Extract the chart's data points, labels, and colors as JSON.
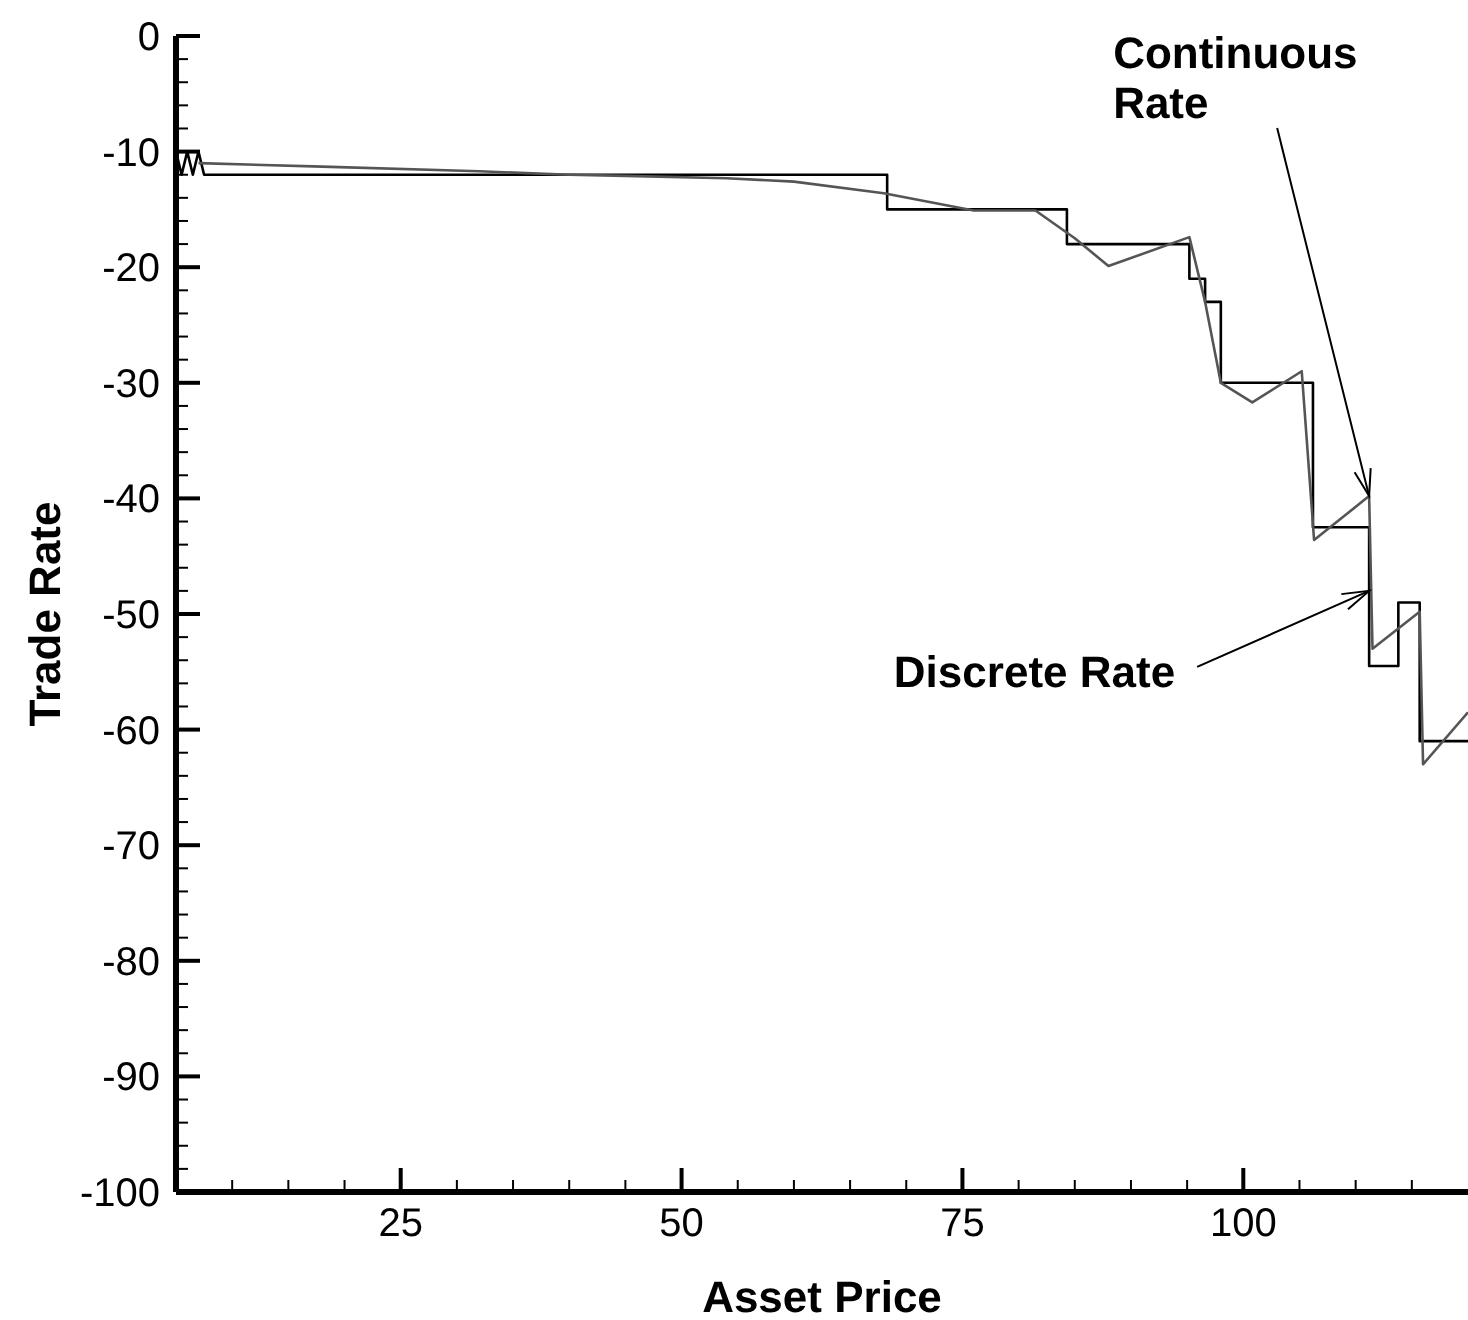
{
  "chart_data": {
    "type": "line",
    "xlabel": "Asset Price",
    "ylabel": "Trade Rate",
    "xlim": [
      5,
      120
    ],
    "xticks": [
      {
        "value": 10,
        "label": null
      },
      {
        "value": 15,
        "label": null
      },
      {
        "value": 20,
        "label": null
      },
      25,
      {
        "value": 30,
        "label": null
      },
      {
        "value": 35,
        "label": null
      },
      {
        "value": 40,
        "label": null
      },
      {
        "value": 45,
        "label": null
      },
      50,
      {
        "value": 55,
        "label": null
      },
      {
        "value": 60,
        "label": null
      },
      {
        "value": 65,
        "label": null
      },
      {
        "value": 70,
        "label": null
      },
      75,
      {
        "value": 80,
        "label": null
      },
      {
        "value": 85,
        "label": null
      },
      {
        "value": 90,
        "label": null
      },
      {
        "value": 95,
        "label": null
      },
      100,
      {
        "value": 105,
        "label": null
      },
      {
        "value": 110,
        "label": null
      },
      {
        "value": 115,
        "label": null
      }
    ],
    "ylim": [
      -100,
      0
    ],
    "yticks": [
      -100,
      {
        "value": -98,
        "label": null
      },
      {
        "value": -96,
        "label": null
      },
      {
        "value": -94,
        "label": null
      },
      {
        "value": -92,
        "label": null
      },
      -90,
      {
        "value": -88,
        "label": null
      },
      {
        "value": -86,
        "label": null
      },
      {
        "value": -84,
        "label": null
      },
      {
        "value": -82,
        "label": null
      },
      -80,
      {
        "value": -78,
        "label": null
      },
      {
        "value": -76,
        "label": null
      },
      {
        "value": -74,
        "label": null
      },
      {
        "value": -72,
        "label": null
      },
      -70,
      {
        "value": -68,
        "label": null
      },
      {
        "value": -66,
        "label": null
      },
      {
        "value": -64,
        "label": null
      },
      {
        "value": -62,
        "label": null
      },
      -60,
      {
        "value": -58,
        "label": null
      },
      {
        "value": -56,
        "label": null
      },
      {
        "value": -54,
        "label": null
      },
      {
        "value": -52,
        "label": null
      },
      -50,
      {
        "value": -48,
        "label": null
      },
      {
        "value": -46,
        "label": null
      },
      {
        "value": -44,
        "label": null
      },
      {
        "value": -42,
        "label": null
      },
      -40,
      {
        "value": -38,
        "label": null
      },
      {
        "value": -36,
        "label": null
      },
      {
        "value": -34,
        "label": null
      },
      {
        "value": -32,
        "label": null
      },
      -30,
      {
        "value": -28,
        "label": null
      },
      {
        "value": -26,
        "label": null
      },
      {
        "value": -24,
        "label": null
      },
      {
        "value": -22,
        "label": null
      },
      -20,
      {
        "value": -18,
        "label": null
      },
      {
        "value": -16,
        "label": null
      },
      {
        "value": -14,
        "label": null
      },
      {
        "value": -12,
        "label": null
      },
      -10,
      {
        "value": -8,
        "label": null
      },
      {
        "value": -6,
        "label": null
      },
      {
        "value": -4,
        "label": null
      },
      {
        "value": -2,
        "label": null
      },
      0
    ],
    "marker": "none",
    "line_style": "solid",
    "series": [
      {
        "color": "#000000",
        "x": [
          5,
          5.5,
          6,
          6.5,
          7,
          7.5,
          68.3,
          68.3,
          84.3,
          84.3,
          95.2,
          95.2,
          96.6,
          96.6,
          98,
          98,
          106.2,
          106.2,
          111.2,
          111.2,
          113.8,
          113.8,
          115.7,
          115.7,
          120
        ],
        "values": [
          -10,
          -12,
          -10,
          -12,
          -10,
          -12,
          -12,
          -15,
          -15,
          -18,
          -18,
          -21,
          -21,
          -23,
          -23,
          -30,
          -30,
          -42.5,
          -42.5,
          -54.5,
          -54.5,
          -49,
          -49,
          -61,
          -61
        ]
      },
      {
        "color": "#555555",
        "x": [
          7,
          18,
          32,
          40,
          45,
          54,
          60,
          68,
          76,
          81.5,
          85,
          88,
          95.2,
          96.6,
          98,
          100.8,
          105.2,
          106.3,
          111.2,
          111.5,
          115.7,
          116,
          120
        ],
        "values": [
          -11,
          -11.3,
          -11.7,
          -12,
          -12.1,
          -12.3,
          -12.6,
          -13.6,
          -15.1,
          -15.1,
          -17.5,
          -19.9,
          -17.4,
          -23,
          -30,
          -31.7,
          -29,
          -43.6,
          -39.8,
          -53,
          -49.8,
          -63,
          -58.5
        ]
      }
    ],
    "annotations": [
      {
        "text": "Continuous Rate",
        "x": 111.2,
        "y": -39.8
      },
      {
        "text": "Discrete Rate",
        "x": 111.2,
        "y": -48
      }
    ]
  }
}
